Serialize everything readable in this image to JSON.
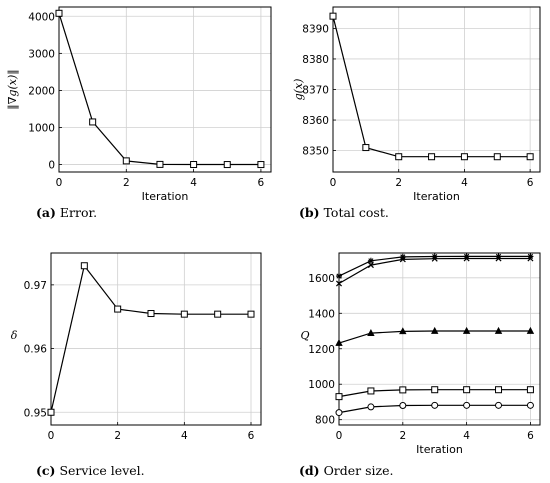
{
  "chart_data": [
    {
      "type": "line",
      "caption_letter": "(a)",
      "caption_text": "Error.",
      "xlabel": "Iteration",
      "ylabel": "‖∇g(x)‖",
      "xlim": [
        0,
        6.3
      ],
      "ylim": [
        -200,
        4250
      ],
      "xticks": [
        0,
        2,
        4,
        6
      ],
      "yticks": [
        0,
        1000,
        2000,
        3000,
        4000
      ],
      "grid": true,
      "series": [
        {
          "marker": "square",
          "x": [
            0,
            1,
            2,
            3,
            4,
            5,
            6
          ],
          "y": [
            4080,
            1150,
            100,
            5,
            2,
            1,
            1
          ]
        }
      ]
    },
    {
      "type": "line",
      "caption_letter": "(b)",
      "caption_text": "Total cost.",
      "xlabel": "Iteration",
      "ylabel": "g(x)",
      "xlim": [
        0,
        6.3
      ],
      "ylim": [
        8343,
        8397
      ],
      "xticks": [
        0,
        2,
        4,
        6
      ],
      "yticks": [
        8350,
        8360,
        8370,
        8380,
        8390
      ],
      "grid": true,
      "series": [
        {
          "marker": "square",
          "x": [
            0,
            1,
            2,
            3,
            4,
            5,
            6
          ],
          "y": [
            8394,
            8351,
            8348,
            8348,
            8348,
            8348,
            8348
          ]
        }
      ]
    },
    {
      "type": "line",
      "caption_letter": "(c)",
      "caption_text": "Service level.",
      "xlabel": "",
      "ylabel": "δ",
      "xlim": [
        0,
        6.3
      ],
      "ylim": [
        0.948,
        0.975
      ],
      "xticks": [
        0,
        2,
        4,
        6
      ],
      "yticks": [
        0.95,
        0.96,
        0.97
      ],
      "ytick_labels": [
        "0.95",
        "0.96",
        "0.97"
      ],
      "grid": true,
      "series": [
        {
          "marker": "square",
          "x": [
            0,
            1,
            2,
            3,
            4,
            5,
            6
          ],
          "y": [
            0.95,
            0.973,
            0.9662,
            0.9655,
            0.9654,
            0.9654,
            0.9654
          ]
        }
      ]
    },
    {
      "type": "line",
      "caption_letter": "(d)",
      "caption_text": "Order size.",
      "xlabel": "Iteration",
      "ylabel": "Q",
      "xlim": [
        0,
        6.3
      ],
      "ylim": [
        770,
        1740
      ],
      "xticks": [
        0,
        2,
        4,
        6
      ],
      "yticks": [
        800,
        1000,
        1200,
        1400,
        1600
      ],
      "grid": true,
      "series": [
        {
          "marker": "circle",
          "x": [
            0,
            1,
            2,
            3,
            4,
            5,
            6
          ],
          "y": [
            840,
            872,
            880,
            881,
            881,
            881,
            881
          ]
        },
        {
          "marker": "square",
          "x": [
            0,
            1,
            2,
            3,
            4,
            5,
            6
          ],
          "y": [
            930,
            962,
            968,
            969,
            969,
            969,
            969
          ]
        },
        {
          "marker": "triangle",
          "x": [
            0,
            1,
            2,
            3,
            4,
            5,
            6
          ],
          "y": [
            1232,
            1288,
            1298,
            1300,
            1300,
            1300,
            1300
          ]
        },
        {
          "marker": "star",
          "x": [
            0,
            1,
            2,
            3,
            4,
            5,
            6
          ],
          "y": [
            1610,
            1696,
            1718,
            1720,
            1721,
            1721,
            1721
          ]
        },
        {
          "marker": "cross",
          "x": [
            0,
            1,
            2,
            3,
            4,
            5,
            6
          ],
          "y": [
            1568,
            1672,
            1704,
            1708,
            1709,
            1709,
            1709
          ]
        }
      ]
    }
  ]
}
